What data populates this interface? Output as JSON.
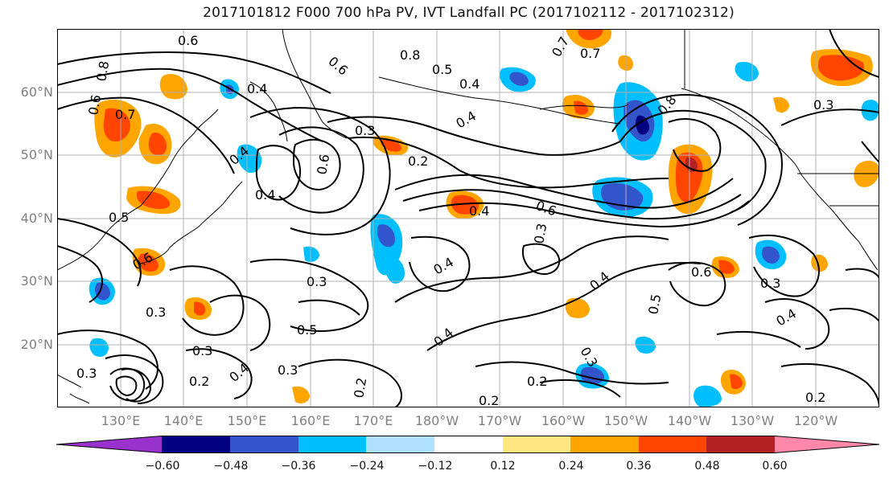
{
  "title": "2017101812 F000 700 hPa PV, IVT Landfall PC (2017102112 - 2017102312)",
  "map": {
    "projection": "plate-carree",
    "extent_lon": [
      "122°E",
      "113°W"
    ],
    "extent_lat": [
      "10°N",
      "70°N"
    ],
    "lat_labels": [
      "60°N",
      "50°N",
      "40°N",
      "30°N",
      "20°N"
    ],
    "lon_labels": [
      "130°E",
      "140°E",
      "150°E",
      "160°E",
      "170°E",
      "180°W",
      "170°W",
      "160°W",
      "150°W",
      "140°W",
      "130°W",
      "120°W"
    ],
    "contour_field": "700 hPa PV",
    "contour_labels": [
      "0.6",
      "0.6",
      "0.8",
      "0.7",
      "0.5",
      "0.4",
      "0.4",
      "0.3",
      "0.4",
      "0.7",
      "0.8",
      "0.6",
      "0.7",
      "0.8",
      "0.3",
      "0.4",
      "0.2",
      "0.4",
      "0.6",
      "0.4",
      "0.6",
      "0.3",
      "0.5",
      "0.6",
      "0.4",
      "0.3",
      "0.4",
      "0.6",
      "0.3",
      "0.5",
      "0.3",
      "0.3",
      "0.3",
      "0.4",
      "0.5",
      "0.4",
      "0.3",
      "0.2",
      "0.3",
      "0.2",
      "0.2",
      "0.2",
      "0.4",
      "0.2"
    ],
    "shading_field": "IVT Landfall PC"
  },
  "colorbar": {
    "colors": [
      "#9932cc",
      "#000080",
      "#3355cc",
      "#00bfff",
      "#aee0ff",
      "#ffffff",
      "#ffe680",
      "#ffa500",
      "#ff4500",
      "#b22222",
      "#ff88aa"
    ],
    "tick_labels": [
      "−0.60",
      "−0.48",
      "−0.36",
      "−0.24",
      "−0.12",
      "0.12",
      "0.24",
      "0.36",
      "0.48",
      "0.60"
    ],
    "extend": "both"
  }
}
